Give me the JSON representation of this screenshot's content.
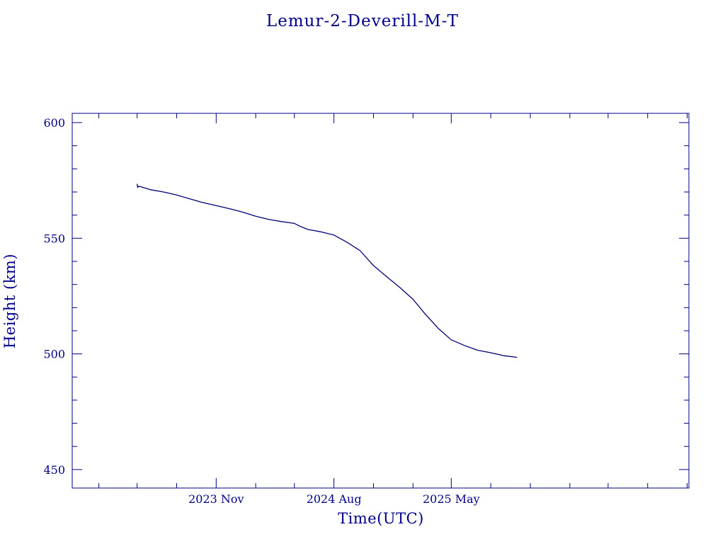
{
  "colors": {
    "ink": "#00008b",
    "line": "#00007a",
    "background": "#ffffff"
  },
  "chart_data": {
    "type": "line",
    "title": "Lemur-2-Deverill-M-T",
    "xlabel": "Time(UTC)",
    "ylabel": "Height (km)",
    "x_axis": {
      "type": "date",
      "range": [
        "2022-12-01",
        "2026-11-05"
      ],
      "ticks": [
        {
          "date": "2023-11-01",
          "label": "2023 Nov"
        },
        {
          "date": "2024-08-01",
          "label": "2024 Aug"
        },
        {
          "date": "2025-05-01",
          "label": "2025 May"
        }
      ]
    },
    "y_axis": {
      "range": [
        442,
        604
      ],
      "ticks": [
        {
          "value": 450,
          "label": "450"
        },
        {
          "value": 500,
          "label": "500"
        },
        {
          "value": 550,
          "label": "550"
        },
        {
          "value": 600,
          "label": "600"
        }
      ]
    },
    "grid": false,
    "legend": "none",
    "series": [
      {
        "x": [
          "2023-05-01",
          "2023-05-02",
          "2023-05-05",
          "2023-06-01",
          "2023-07-01",
          "2023-08-01",
          "2023-09-01",
          "2023-10-01",
          "2023-11-01",
          "2023-12-01",
          "2024-01-01",
          "2024-02-01",
          "2024-03-01",
          "2024-04-01",
          "2024-05-01",
          "2024-05-15",
          "2024-06-01",
          "2024-07-01",
          "2024-08-01",
          "2024-09-01",
          "2024-10-01",
          "2024-11-01",
          "2024-12-01",
          "2025-01-01",
          "2025-02-01",
          "2025-03-01",
          "2025-04-01",
          "2025-05-01",
          "2025-06-01",
          "2025-07-01",
          "2025-08-01",
          "2025-09-01",
          "2025-10-01"
        ],
        "y": [
          573.5,
          572.0,
          572.5,
          571.0,
          570.0,
          568.7,
          567.0,
          565.4,
          564.1,
          562.8,
          561.3,
          559.5,
          558.2,
          557.2,
          556.4,
          555.1,
          553.8,
          552.8,
          551.4,
          548.2,
          544.6,
          538.2,
          533.5,
          528.8,
          523.6,
          517.3,
          511.0,
          506.1,
          503.6,
          501.6,
          500.5,
          499.2,
          498.5
        ]
      }
    ]
  }
}
